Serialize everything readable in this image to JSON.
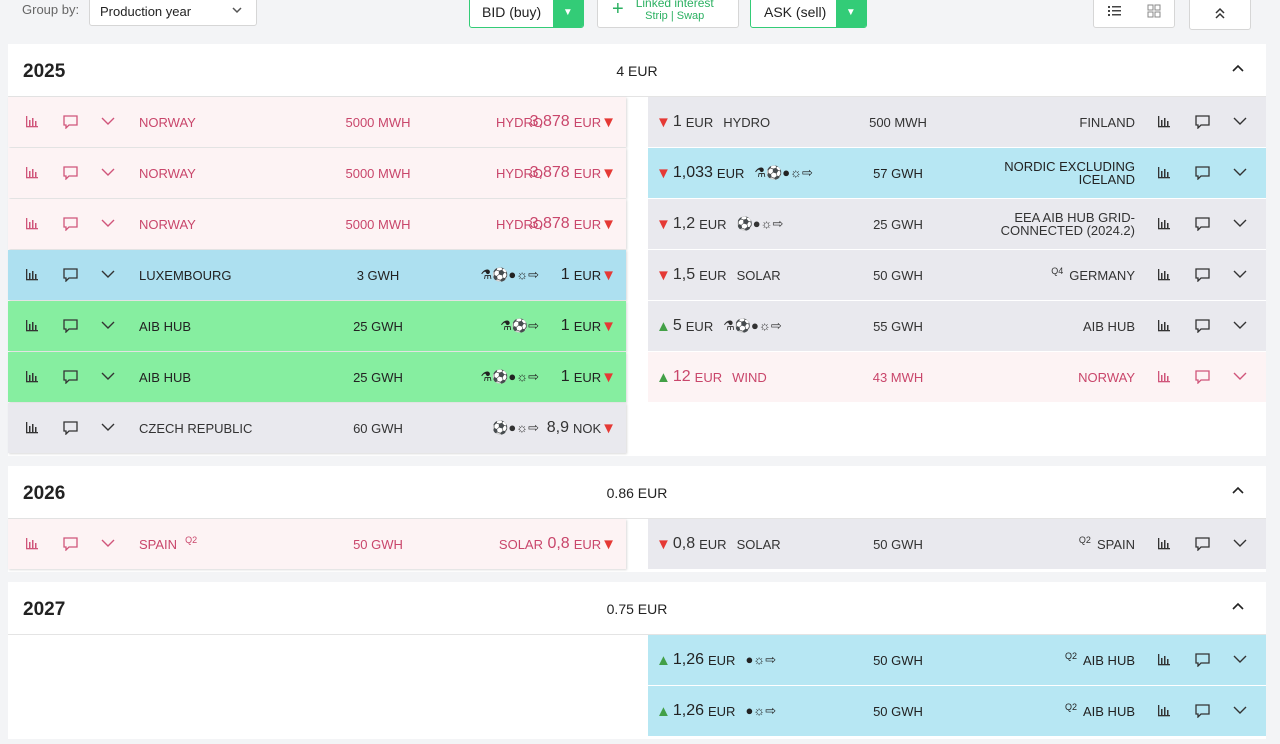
{
  "toolbar": {
    "group_by_label": "Group by:",
    "group_by_value": "Production year",
    "bid_button": "BID (buy)",
    "linked_title": "Linked interest",
    "linked_sub": "Strip | Swap",
    "ask_button": "ASK (sell)"
  },
  "groups": [
    {
      "year": "2025",
      "spread": "4 EUR",
      "bids": [
        {
          "country": "NORWAY",
          "volume": "5000 MWH",
          "tech": "HYDRO",
          "price": "3,878",
          "unit": "EUR",
          "trend": "▼",
          "highlight": "pink"
        },
        {
          "country": "NORWAY",
          "volume": "5000 MWH",
          "tech": "HYDRO",
          "price": "3,878",
          "unit": "EUR",
          "trend": "▼",
          "highlight": "pink"
        },
        {
          "country": "NORWAY",
          "volume": "5000 MWH",
          "tech": "HYDRO",
          "price": "3,878",
          "unit": "EUR",
          "trend": "▼",
          "highlight": "pink"
        },
        {
          "country": "LUXEMBOURG",
          "volume": "3 GWH",
          "icons": "⚗⚽●☼⇨",
          "price": "1",
          "unit": "EUR",
          "trend": "▼",
          "highlight": "blue"
        },
        {
          "country": "AIB HUB",
          "volume": "25 GWH",
          "icons": "⚗⚽⇨",
          "price": "1",
          "unit": "EUR",
          "trend": "▼",
          "highlight": "green"
        },
        {
          "country": "AIB HUB",
          "volume": "25 GWH",
          "icons": "⚗⚽●☼⇨",
          "price": "1",
          "unit": "EUR",
          "trend": "▼",
          "highlight": "green"
        },
        {
          "country": "CZECH REPUBLIC",
          "volume": "60 GWH",
          "icons": "⚽●☼⇨",
          "price": "8,9",
          "unit": "NOK",
          "trend": "▼",
          "highlight": "grey"
        }
      ],
      "asks": [
        {
          "trend": "▼",
          "price": "1",
          "unit": "EUR",
          "tech": "HYDRO",
          "volume": "500 MWH",
          "country": "FINLAND",
          "highlight": "grey"
        },
        {
          "trend": "▼",
          "price": "1,033",
          "unit": "EUR",
          "icons": "⚗⚽●☼⇨",
          "volume": "57 GWH",
          "country": "NORDIC EXCLUDING ICELAND",
          "highlight": "blue"
        },
        {
          "trend": "▼",
          "price": "1,2",
          "unit": "EUR",
          "icons": "⚽●☼⇨",
          "volume": "25 GWH",
          "country": "EEA AIB HUB GRID-CONNECTED (2024.2)",
          "highlight": "grey"
        },
        {
          "trend": "▼",
          "price": "1,5",
          "unit": "EUR",
          "tech": "SOLAR",
          "volume": "50 GWH",
          "quarter": "Q4",
          "country": "GERMANY",
          "highlight": "grey"
        },
        {
          "trend": "▲",
          "price": "5",
          "unit": "EUR",
          "icons": "⚗⚽●☼⇨",
          "volume": "55 GWH",
          "country": "AIB HUB",
          "highlight": "grey"
        },
        {
          "trend": "▲",
          "price": "12",
          "unit": "EUR",
          "tech": "WIND",
          "volume": "43 MWH",
          "country": "NORWAY",
          "highlight": "pink"
        }
      ]
    },
    {
      "year": "2026",
      "spread": "0.86 EUR",
      "bids": [
        {
          "country": "SPAIN",
          "quarter": "Q2",
          "volume": "50 GWH",
          "tech": "SOLAR",
          "price": "0,8",
          "unit": "EUR",
          "trend": "▼",
          "highlight": "pink"
        }
      ],
      "asks": [
        {
          "trend": "▼",
          "price": "0,8",
          "unit": "EUR",
          "tech": "SOLAR",
          "volume": "50 GWH",
          "quarter": "Q2",
          "country": "SPAIN",
          "highlight": "grey"
        }
      ]
    },
    {
      "year": "2027",
      "spread": "0.75 EUR",
      "bids": [],
      "asks": [
        {
          "trend": "▲",
          "price": "1,26",
          "unit": "EUR",
          "icons": "●☼⇨",
          "volume": "50 GWH",
          "quarter": "Q2",
          "country": "AIB HUB",
          "highlight": "blue"
        },
        {
          "trend": "▲",
          "price": "1,26",
          "unit": "EUR",
          "icons": "●☼⇨",
          "volume": "50 GWH",
          "quarter": "Q2",
          "country": "AIB HUB",
          "highlight": "blue"
        }
      ]
    }
  ]
}
